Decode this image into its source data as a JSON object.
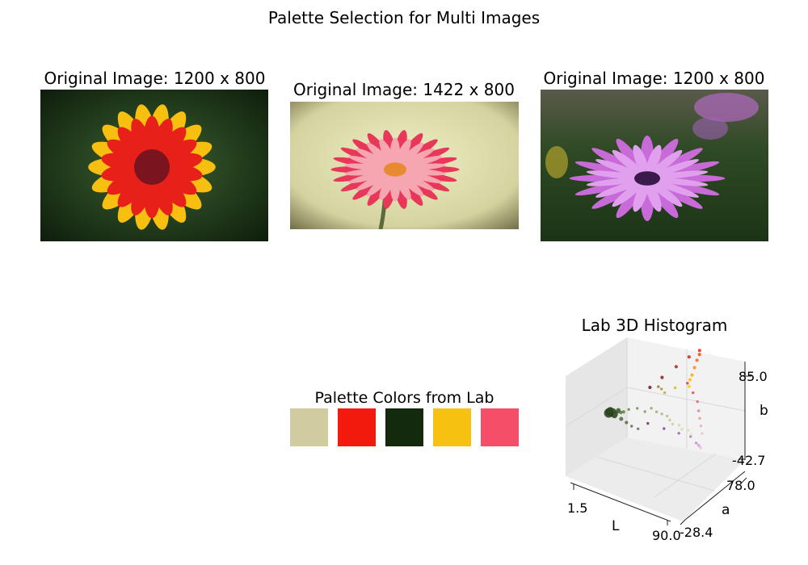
{
  "figure": {
    "title": "Palette Selection for Multi Images"
  },
  "images": [
    {
      "title": "Original Image: 1200 x 800",
      "subject": "orange-red zinnia flower",
      "bg": "#22401c",
      "petal_outer": "#f7c010",
      "petal_inner": "#e8201a",
      "center": "#7a1520"
    },
    {
      "title": "Original Image: 1422 x 800",
      "subject": "pink gerbera daisy",
      "bg": "#d8d7a8",
      "petal_outer": "#e8385a",
      "petal_inner": "#f6a6b0",
      "center": "#e88a30"
    },
    {
      "title": "Original Image: 1200 x 800",
      "subject": "purple osteospermum",
      "bg": "#2e4a24",
      "petal_outer": "#c86ad8",
      "petal_inner": "#e0a0ee",
      "center": "#3a1a4a"
    }
  ],
  "palette": {
    "title": "Palette Colors from Lab",
    "colors": [
      "#d0cc9f",
      "#f21a0c",
      "#142a0c",
      "#f6c110",
      "#f44e68"
    ]
  },
  "chart_data": {
    "type": "scatter3d",
    "title": "Lab 3D Histogram",
    "xlabel": "L",
    "ylabel": "a",
    "zlabel": "b",
    "xticks": [
      "1.5",
      "90.0"
    ],
    "yticks": [
      "-28.4",
      "78.0"
    ],
    "zticks": [
      "-42.7",
      "85.0"
    ],
    "xlim": [
      1.5,
      90.0
    ],
    "ylim": [
      -28.4,
      78.0
    ],
    "zlim": [
      -42.7,
      85.0
    ],
    "points": [
      {
        "L": 8,
        "a": -8,
        "b": 10,
        "s": 14,
        "c": "#1e3a18"
      },
      {
        "L": 10,
        "a": -10,
        "b": 14,
        "s": 12,
        "c": "#243f1c"
      },
      {
        "L": 12,
        "a": -12,
        "b": 18,
        "s": 10,
        "c": "#2f4a22"
      },
      {
        "L": 14,
        "a": -9,
        "b": 12,
        "s": 11,
        "c": "#2a4420"
      },
      {
        "L": 16,
        "a": -14,
        "b": 20,
        "s": 9,
        "c": "#35502a"
      },
      {
        "L": 18,
        "a": -15,
        "b": 16,
        "s": 8,
        "c": "#3a5a2e"
      },
      {
        "L": 20,
        "a": -12,
        "b": 22,
        "s": 7,
        "c": "#44602e"
      },
      {
        "L": 22,
        "a": -16,
        "b": 24,
        "s": 6,
        "c": "#4a6a34"
      },
      {
        "L": 24,
        "a": -14,
        "b": 14,
        "s": 6,
        "c": "#4e6a3a"
      },
      {
        "L": 26,
        "a": -18,
        "b": 26,
        "s": 5,
        "c": "#567438"
      },
      {
        "L": 28,
        "a": -12,
        "b": 10,
        "s": 5,
        "c": "#506a44"
      },
      {
        "L": 30,
        "a": -20,
        "b": 30,
        "s": 5,
        "c": "#5e7c3e"
      },
      {
        "L": 32,
        "a": -10,
        "b": 6,
        "s": 4,
        "c": "#5a6e54"
      },
      {
        "L": 34,
        "a": -18,
        "b": 34,
        "s": 4,
        "c": "#6a8444"
      },
      {
        "L": 36,
        "a": -6,
        "b": 2,
        "s": 4,
        "c": "#66705e"
      },
      {
        "L": 40,
        "a": -14,
        "b": 36,
        "s": 4,
        "c": "#7c8e4e"
      },
      {
        "L": 44,
        "a": -8,
        "b": 30,
        "s": 4,
        "c": "#8c9456"
      },
      {
        "L": 48,
        "a": -4,
        "b": 34,
        "s": 4,
        "c": "#9ea064"
      },
      {
        "L": 52,
        "a": -2,
        "b": 30,
        "s": 4,
        "c": "#a8a870"
      },
      {
        "L": 56,
        "a": 0,
        "b": 28,
        "s": 4,
        "c": "#b4b27c"
      },
      {
        "L": 60,
        "a": 2,
        "b": 26,
        "s": 4,
        "c": "#bcba88"
      },
      {
        "L": 64,
        "a": 0,
        "b": 24,
        "s": 4,
        "c": "#c6c494"
      },
      {
        "L": 68,
        "a": -2,
        "b": 22,
        "s": 4,
        "c": "#cfcc9f"
      },
      {
        "L": 72,
        "a": 2,
        "b": 20,
        "s": 4,
        "c": "#d6d2aa"
      },
      {
        "L": 76,
        "a": 0,
        "b": 18,
        "s": 4,
        "c": "#ddd8b4"
      },
      {
        "L": 80,
        "a": 4,
        "b": 16,
        "s": 4,
        "c": "#e2dcbc"
      },
      {
        "L": 84,
        "a": 2,
        "b": 14,
        "s": 4,
        "c": "#e6e0c4"
      },
      {
        "L": 30,
        "a": 20,
        "b": -10,
        "s": 4,
        "c": "#5a3a62"
      },
      {
        "L": 40,
        "a": 30,
        "b": -18,
        "s": 4,
        "c": "#7a4c88"
      },
      {
        "L": 50,
        "a": 38,
        "b": -24,
        "s": 4,
        "c": "#9a5eaa"
      },
      {
        "L": 58,
        "a": 44,
        "b": -28,
        "s": 4,
        "c": "#b46ec4"
      },
      {
        "L": 66,
        "a": 40,
        "b": -30,
        "s": 4,
        "c": "#c884d6"
      },
      {
        "L": 72,
        "a": 34,
        "b": -26,
        "s": 4,
        "c": "#d498e0"
      },
      {
        "L": 78,
        "a": 26,
        "b": -20,
        "s": 4,
        "c": "#deb0e8"
      },
      {
        "L": 84,
        "a": 18,
        "b": -14,
        "s": 4,
        "c": "#e8c6ee"
      },
      {
        "L": 20,
        "a": 40,
        "b": 20,
        "s": 5,
        "c": "#6a1a1c"
      },
      {
        "L": 26,
        "a": 50,
        "b": 30,
        "s": 5,
        "c": "#8a1e1e"
      },
      {
        "L": 34,
        "a": 60,
        "b": 42,
        "s": 5,
        "c": "#b0221a"
      },
      {
        "L": 42,
        "a": 68,
        "b": 54,
        "s": 5,
        "c": "#d02418"
      },
      {
        "L": 50,
        "a": 72,
        "b": 64,
        "s": 5,
        "c": "#ec2a12"
      },
      {
        "L": 56,
        "a": 62,
        "b": 68,
        "s": 5,
        "c": "#f44a10"
      },
      {
        "L": 62,
        "a": 48,
        "b": 72,
        "s": 5,
        "c": "#f66a10"
      },
      {
        "L": 68,
        "a": 34,
        "b": 74,
        "s": 5,
        "c": "#f68c10"
      },
      {
        "L": 74,
        "a": 20,
        "b": 76,
        "s": 5,
        "c": "#f6ac12"
      },
      {
        "L": 78,
        "a": 10,
        "b": 78,
        "s": 5,
        "c": "#f6c214"
      },
      {
        "L": 82,
        "a": 2,
        "b": 76,
        "s": 5,
        "c": "#f6d420"
      },
      {
        "L": 44,
        "a": 62,
        "b": 24,
        "s": 4,
        "c": "#d43a52"
      },
      {
        "L": 52,
        "a": 58,
        "b": 18,
        "s": 4,
        "c": "#e4465e"
      },
      {
        "L": 60,
        "a": 52,
        "b": 14,
        "s": 4,
        "c": "#f05a70"
      },
      {
        "L": 66,
        "a": 44,
        "b": 10,
        "s": 4,
        "c": "#f47486"
      },
      {
        "L": 72,
        "a": 36,
        "b": 8,
        "s": 4,
        "c": "#f68c9a"
      },
      {
        "L": 78,
        "a": 28,
        "b": 6,
        "s": 4,
        "c": "#f6a4b0"
      },
      {
        "L": 84,
        "a": 20,
        "b": 4,
        "s": 4,
        "c": "#f8bcc4"
      },
      {
        "L": 38,
        "a": 24,
        "b": 40,
        "s": 4,
        "c": "#9a6e32"
      },
      {
        "L": 46,
        "a": 16,
        "b": 46,
        "s": 4,
        "c": "#b08a34"
      },
      {
        "L": 54,
        "a": 8,
        "b": 50,
        "s": 4,
        "c": "#c4a436"
      },
      {
        "L": 62,
        "a": 12,
        "b": 58,
        "s": 4,
        "c": "#dcb424"
      }
    ]
  }
}
